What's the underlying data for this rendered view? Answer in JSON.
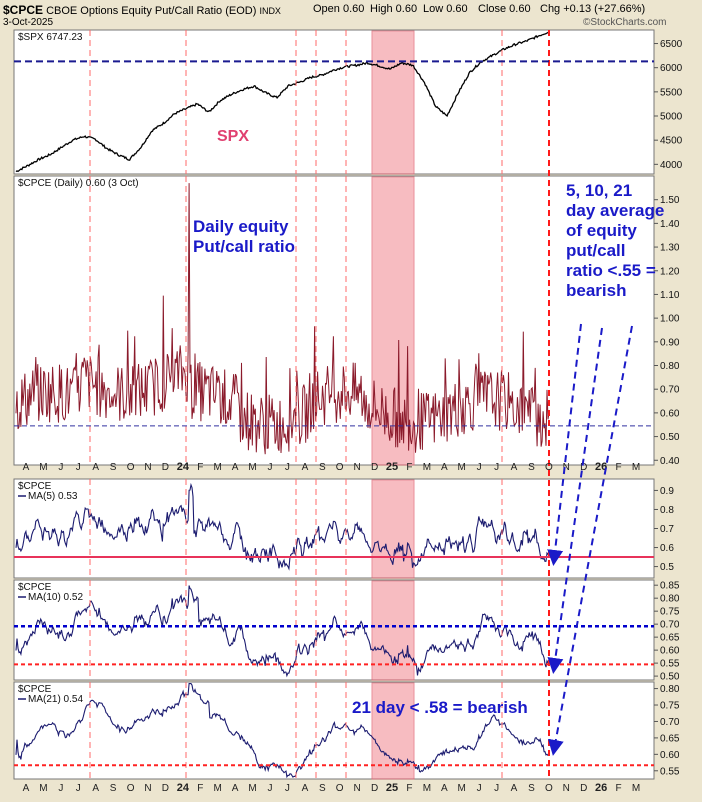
{
  "header": {
    "symbol": "$CPCE",
    "name": "CBOE Options Equity Put/Call Ratio (EOD)",
    "exchange": "INDX",
    "date": "3-Oct-2025",
    "open": "Open 0.60",
    "high": "High 0.60",
    "low": "Low 0.60",
    "close": "Close 0.60",
    "chg": "Chg +0.13 (+27.66%)",
    "brand": "©StockCharts.com"
  },
  "annotations": {
    "spx": "SPX",
    "daily_line1": "Daily equity",
    "daily_line2": "Put/call ratio",
    "avg_line1": "5, 10, 21",
    "avg_line2": "day average",
    "avg_line3": "of equity",
    "avg_line4": "put/call",
    "avg_line5": "ratio <.55 =",
    "avg_line6": "bearish",
    "ma21_note": "21 day < .58 = bearish"
  },
  "colors": {
    "background": "#ece5cf",
    "plot": "#ffffff",
    "spx_line": "#000000",
    "cpce_line": "#8b1a2b",
    "ma_line": "#1c1c70",
    "vline": "#ff6a6a",
    "shade": "#f4a0a8",
    "annotation": "#1a1ac8",
    "red_ref": "#ff2222",
    "blue_ref": "#0000cc"
  },
  "chart_data": [
    {
      "type": "line",
      "name": "SPX panel",
      "label": "$SPX 6747.23",
      "last_value": 6747.23,
      "y_ticks": [
        "6500",
        "6000",
        "5500",
        "5000",
        "4500",
        "4000"
      ],
      "ylim": [
        3800,
        6780
      ],
      "reference_line": 6130,
      "series": [
        {
          "name": "$SPX",
          "values": [
            3850,
            3970,
            4100,
            4200,
            4350,
            4500,
            4580,
            4520,
            4330,
            4200,
            4100,
            4350,
            4700,
            4850,
            5050,
            5150,
            5250,
            5080,
            5320,
            5450,
            5550,
            5620,
            5480,
            5380,
            5620,
            5700,
            5800,
            5850,
            5950,
            6020,
            6050,
            6100,
            6040,
            5970,
            6100,
            6050,
            5700,
            5200,
            5000,
            5480,
            5900,
            6120,
            6250,
            6380,
            6480,
            6550,
            6650,
            6747
          ]
        }
      ]
    },
    {
      "type": "line",
      "name": "CPCE daily panel",
      "label": "$CPCE (Daily) 0.60 (3 Oct)",
      "y_ticks": [
        "1.50",
        "1.40",
        "1.30",
        "1.20",
        "1.10",
        "1.00",
        "0.90",
        "0.80",
        "0.70",
        "0.60",
        "0.50",
        "0.40"
      ],
      "ylim": [
        0.38,
        1.6
      ],
      "reference_line": 0.545,
      "peak": 1.57
    },
    {
      "type": "line",
      "name": "MA5 panel",
      "label": "$CPCE",
      "ma_label": "MA(5) 0.53",
      "y_ticks": [
        "0.9",
        "0.8",
        "0.7",
        "0.6",
        "0.5"
      ],
      "ylim": [
        0.44,
        0.96
      ],
      "reference_line": 0.55
    },
    {
      "type": "line",
      "name": "MA10 panel",
      "label": "$CPCE",
      "ma_label": "MA(10) 0.52",
      "y_ticks": [
        "0.85",
        "0.80",
        "0.75",
        "0.70",
        "0.65",
        "0.60",
        "0.55",
        "0.50"
      ],
      "ylim": [
        0.485,
        0.87
      ],
      "reference_lines": [
        0.692,
        0.545
      ]
    },
    {
      "type": "line",
      "name": "MA21 panel",
      "label": "$CPCE",
      "ma_label": "MA(21) 0.54",
      "y_ticks": [
        "0.80",
        "0.75",
        "0.70",
        "0.65",
        "0.60",
        "0.55"
      ],
      "ylim": [
        0.525,
        0.82
      ],
      "reference_line": 0.567
    }
  ],
  "x_axis": {
    "labels": [
      "A",
      "M",
      "J",
      "J",
      "A",
      "S",
      "O",
      "N",
      "D",
      "24",
      "F",
      "M",
      "A",
      "M",
      "J",
      "J",
      "A",
      "S",
      "O",
      "N",
      "D",
      "25",
      "F",
      "M",
      "A",
      "M",
      "J",
      "J",
      "A",
      "S",
      "O",
      "N",
      "D",
      "26",
      "F",
      "M"
    ]
  }
}
